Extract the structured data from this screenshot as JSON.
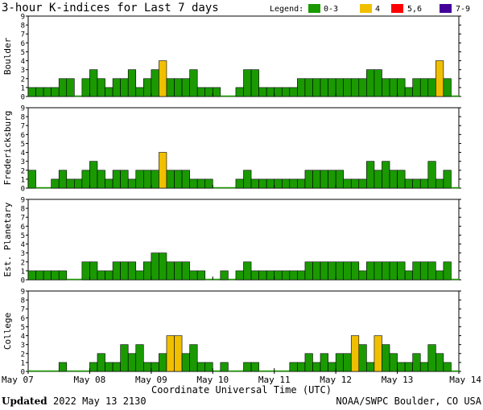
{
  "chart_data": {
    "type": "bar",
    "title": "3-hour K-indices for Last 7 days",
    "legend": {
      "title": "Legend:",
      "entries": [
        {
          "label": "0-3",
          "color": "#1a9a00"
        },
        {
          "label": "4",
          "color": "#f0c000"
        },
        {
          "label": "5,6",
          "color": "#ff0000"
        },
        {
          "label": "7-9",
          "color": "#440099"
        }
      ]
    },
    "y_ticks": [
      "0",
      "1",
      "2",
      "3",
      "4",
      "5",
      "6",
      "7",
      "8",
      "9"
    ],
    "ylim": [
      0,
      9
    ],
    "x_ticks": [
      "May 07",
      "May 08",
      "May 09",
      "May 10",
      "May 11",
      "May 12",
      "May 13",
      "May 14"
    ],
    "xlabel": "Coordinate Universal Time (UTC)",
    "panels": [
      {
        "name": "Boulder",
        "values": [
          1,
          1,
          1,
          1,
          2,
          2,
          0,
          2,
          3,
          2,
          1,
          2,
          2,
          3,
          1,
          2,
          3,
          4,
          2,
          2,
          2,
          3,
          1,
          1,
          1,
          0,
          0,
          1,
          3,
          3,
          1,
          1,
          1,
          1,
          1,
          2,
          2,
          2,
          2,
          2,
          2,
          2,
          2,
          2,
          3,
          3,
          2,
          2,
          2,
          1,
          2,
          2,
          2,
          4,
          2,
          0
        ]
      },
      {
        "name": "Fredericksburg",
        "values": [
          2,
          0,
          0,
          1,
          2,
          1,
          1,
          2,
          3,
          2,
          1,
          2,
          2,
          1,
          2,
          2,
          2,
          4,
          2,
          2,
          2,
          1,
          1,
          1,
          0,
          0,
          0,
          1,
          2,
          1,
          1,
          1,
          1,
          1,
          1,
          1,
          2,
          2,
          2,
          2,
          2,
          1,
          1,
          1,
          3,
          2,
          3,
          2,
          2,
          1,
          1,
          1,
          3,
          1,
          2,
          0
        ]
      },
      {
        "name": "Est. Planetary",
        "values": [
          1,
          1,
          1,
          1,
          1,
          0,
          0,
          2,
          2,
          1,
          1,
          2,
          2,
          2,
          1,
          2,
          3,
          3,
          2,
          2,
          2,
          1,
          1,
          0,
          0,
          1,
          0,
          1,
          2,
          1,
          1,
          1,
          1,
          1,
          1,
          1,
          2,
          2,
          2,
          2,
          2,
          2,
          2,
          1,
          2,
          2,
          2,
          2,
          2,
          1,
          2,
          2,
          2,
          1,
          2,
          0
        ]
      },
      {
        "name": "College",
        "values": [
          0,
          0,
          0,
          0,
          1,
          0,
          0,
          0,
          1,
          2,
          1,
          1,
          3,
          2,
          3,
          1,
          1,
          2,
          4,
          4,
          2,
          3,
          1,
          1,
          0,
          1,
          0,
          0,
          1,
          1,
          0,
          0,
          0,
          0,
          1,
          1,
          2,
          1,
          2,
          1,
          2,
          2,
          4,
          3,
          1,
          4,
          3,
          2,
          1,
          1,
          2,
          1,
          3,
          2,
          1,
          0
        ]
      }
    ]
  },
  "footer": {
    "updated_label": "Updated",
    "updated_value": "2022 May 13 2130",
    "source": "NOAA/SWPC Boulder, CO USA"
  }
}
